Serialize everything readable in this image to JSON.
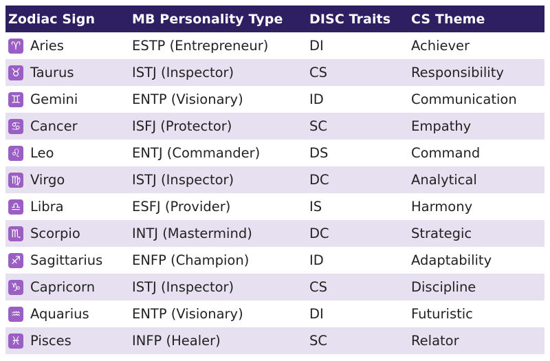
{
  "table": {
    "headers": [
      "Zodiac Sign",
      "MB Personality Type",
      "DISC Traits",
      "CS Theme"
    ],
    "rows": [
      {
        "icon_glyph": "♈",
        "icon_name": "aries-icon",
        "sign": "Aries",
        "mb": "ESTP (Entrepreneur)",
        "disc": "DI",
        "cs": "Achiever"
      },
      {
        "icon_glyph": "♉",
        "icon_name": "taurus-icon",
        "sign": "Taurus",
        "mb": "ISTJ (Inspector)",
        "disc": "CS",
        "cs": "Responsibility"
      },
      {
        "icon_glyph": "♊",
        "icon_name": "gemini-icon",
        "sign": "Gemini",
        "mb": "ENTP (Visionary)",
        "disc": "ID",
        "cs": "Communication"
      },
      {
        "icon_glyph": "♋",
        "icon_name": "cancer-icon",
        "sign": "Cancer",
        "mb": "ISFJ (Protector)",
        "disc": "SC",
        "cs": "Empathy"
      },
      {
        "icon_glyph": "♌",
        "icon_name": "leo-icon",
        "sign": "Leo",
        "mb": "ENTJ (Commander)",
        "disc": "DS",
        "cs": "Command"
      },
      {
        "icon_glyph": "♍",
        "icon_name": "virgo-icon",
        "sign": "Virgo",
        "mb": "ISTJ (Inspector)",
        "disc": "DC",
        "cs": "Analytical"
      },
      {
        "icon_glyph": "♎",
        "icon_name": "libra-icon",
        "sign": "Libra",
        "mb": "ESFJ (Provider)",
        "disc": "IS",
        "cs": "Harmony"
      },
      {
        "icon_glyph": "♏",
        "icon_name": "scorpio-icon",
        "sign": "Scorpio",
        "mb": "INTJ (Mastermind)",
        "disc": "DC",
        "cs": "Strategic"
      },
      {
        "icon_glyph": "♐",
        "icon_name": "sagittarius-icon",
        "sign": "Sagittarius",
        "mb": "ENFP (Champion)",
        "disc": "ID",
        "cs": "Adaptability"
      },
      {
        "icon_glyph": "♑",
        "icon_name": "capricorn-icon",
        "sign": "Capricorn",
        "mb": "ISTJ (Inspector)",
        "disc": "CS",
        "cs": "Discipline"
      },
      {
        "icon_glyph": "♒",
        "icon_name": "aquarius-icon",
        "sign": "Aquarius",
        "mb": "ENTP (Visionary)",
        "disc": "DI",
        "cs": "Futuristic"
      },
      {
        "icon_glyph": "♓",
        "icon_name": "pisces-icon",
        "sign": "Pisces",
        "mb": "INFP (Healer)",
        "disc": "SC",
        "cs": "Relator"
      }
    ]
  },
  "colors": {
    "header_bg": "#2e1f63",
    "alt_row_bg": "#e6e0f0",
    "icon_bg": "#9b5fc4"
  }
}
